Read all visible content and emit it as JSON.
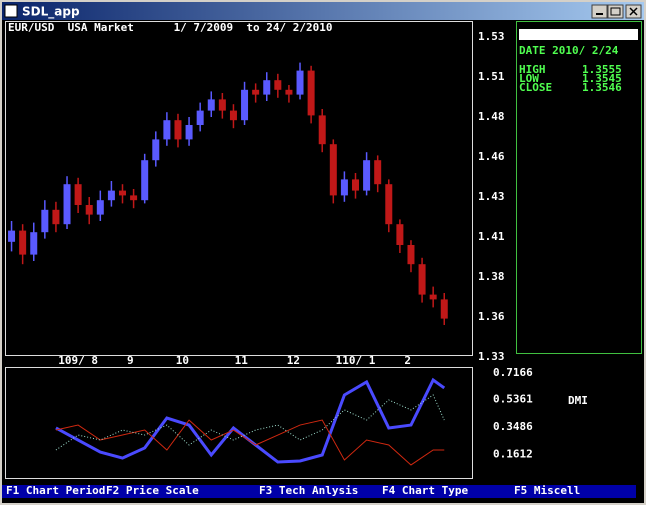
{
  "window": {
    "title": "SDL_app"
  },
  "header": "EUR/USD  USA Market      1/ 7/2009  to 24/ 2/2010",
  "info": {
    "date": "DATE 2010/ 2/24",
    "rows": [
      [
        "HIGH",
        "1.3555"
      ],
      [
        "LOW",
        "1.3545"
      ],
      [
        "CLOSE",
        "1.3546"
      ]
    ]
  },
  "menu": [
    "F1 Chart Period",
    "F2 Price Scale",
    "F3 Tech Anlysis",
    "F4 Chart Type",
    "F5 Miscell"
  ],
  "chart_data": [
    {
      "type": "candlestick",
      "open": [
        1.402,
        1.409,
        1.394,
        1.408,
        1.422,
        1.413,
        1.438,
        1.425,
        1.419,
        1.428,
        1.434,
        1.431,
        1.428,
        1.453,
        1.466,
        1.478,
        1.466,
        1.475,
        1.484,
        1.491,
        1.484,
        1.478,
        1.497,
        1.494,
        1.503,
        1.497,
        1.494,
        1.509,
        1.481,
        1.463,
        1.431,
        1.441,
        1.434,
        1.453,
        1.438,
        1.413,
        1.4,
        1.388,
        1.369,
        1.366
      ],
      "close": [
        1.409,
        1.394,
        1.408,
        1.422,
        1.413,
        1.438,
        1.425,
        1.419,
        1.428,
        1.434,
        1.431,
        1.428,
        1.453,
        1.466,
        1.478,
        1.466,
        1.475,
        1.484,
        1.491,
        1.484,
        1.478,
        1.497,
        1.494,
        1.503,
        1.497,
        1.494,
        1.509,
        1.481,
        1.463,
        1.431,
        1.441,
        1.434,
        1.453,
        1.438,
        1.413,
        1.4,
        1.388,
        1.369,
        1.366,
        1.354
      ],
      "high": [
        1.415,
        1.413,
        1.414,
        1.428,
        1.427,
        1.443,
        1.442,
        1.43,
        1.434,
        1.44,
        1.438,
        1.435,
        1.457,
        1.471,
        1.483,
        1.482,
        1.48,
        1.489,
        1.496,
        1.495,
        1.488,
        1.502,
        1.501,
        1.508,
        1.507,
        1.5,
        1.514,
        1.512,
        1.485,
        1.466,
        1.446,
        1.445,
        1.458,
        1.456,
        1.441,
        1.416,
        1.403,
        1.392,
        1.374,
        1.37
      ],
      "low": [
        1.396,
        1.388,
        1.39,
        1.404,
        1.408,
        1.41,
        1.42,
        1.413,
        1.415,
        1.424,
        1.426,
        1.423,
        1.426,
        1.449,
        1.462,
        1.461,
        1.462,
        1.471,
        1.48,
        1.479,
        1.473,
        1.475,
        1.489,
        1.49,
        1.492,
        1.489,
        1.491,
        1.476,
        1.458,
        1.426,
        1.427,
        1.429,
        1.431,
        1.433,
        1.408,
        1.395,
        1.383,
        1.364,
        1.361,
        1.35
      ],
      "up_color": "#5a5aff",
      "down_color": "#c01818",
      "xlim": [
        -0.5,
        41.5
      ],
      "xticks": [
        {
          "value": 6,
          "label": "109/ 8"
        },
        {
          "value": 10.7,
          "label": "9"
        },
        {
          "value": 15.4,
          "label": "10"
        },
        {
          "value": 20.7,
          "label": "11"
        },
        {
          "value": 25.4,
          "label": "12"
        },
        {
          "value": 31,
          "label": "110/ 1"
        },
        {
          "value": 35.7,
          "label": "2"
        }
      ],
      "ylim": [
        1.33,
        1.53
      ],
      "yticks": [
        1.33,
        {
          "value": 1.355,
          "label": "1.36"
        },
        1.38,
        {
          "value": 1.405,
          "label": "1.41"
        },
        1.43,
        {
          "value": 1.455,
          "label": "1.46"
        },
        1.48,
        {
          "value": 1.505,
          "label": "1.51"
        },
        1.53
      ]
    },
    {
      "type": "line",
      "label": "DMI",
      "x": [
        4,
        6,
        8,
        10,
        12,
        14,
        16,
        18,
        20,
        22,
        24,
        26,
        28,
        30,
        32,
        34,
        36,
        38,
        39
      ],
      "series": [
        {
          "color": "#4a4aff",
          "values": [
            0.341,
            0.259,
            0.177,
            0.136,
            0.205,
            0.409,
            0.361,
            0.157,
            0.341,
            0.225,
            0.109,
            0.116,
            0.157,
            0.566,
            0.655,
            0.341,
            0.361,
            0.668,
            0.614
          ]
        },
        {
          "color": "#d02810",
          "values": [
            0.327,
            0.361,
            0.259,
            0.293,
            0.327,
            0.191,
            0.395,
            0.259,
            0.327,
            0.225,
            0.293,
            0.361,
            0.395,
            0.123,
            0.259,
            0.225,
            0.089,
            0.191,
            0.191
          ]
        },
        {
          "color": "#a0e0d0",
          "values": [
            0.191,
            0.293,
            0.259,
            0.327,
            0.293,
            0.361,
            0.225,
            0.327,
            0.259,
            0.327,
            0.361,
            0.259,
            0.327,
            0.464,
            0.395,
            0.532,
            0.464,
            0.566,
            0.395
          ]
        }
      ],
      "xlim": [
        -0.5,
        41.5
      ],
      "ylim": [
        0,
        0.75
      ],
      "yticks": [
        0.1612,
        0.3486,
        0.5361,
        0.7166
      ]
    }
  ]
}
